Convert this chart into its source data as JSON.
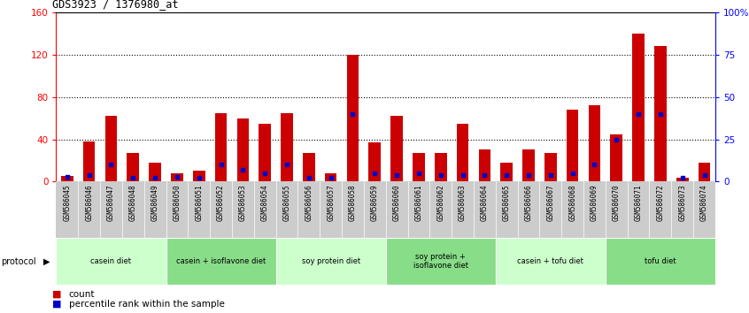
{
  "title": "GDS3923 / 1376980_at",
  "samples": [
    "GSM586045",
    "GSM586046",
    "GSM586047",
    "GSM586048",
    "GSM586049",
    "GSM586050",
    "GSM586051",
    "GSM586052",
    "GSM586053",
    "GSM586054",
    "GSM586055",
    "GSM586056",
    "GSM586057",
    "GSM586058",
    "GSM586059",
    "GSM586060",
    "GSM586061",
    "GSM586062",
    "GSM586063",
    "GSM586064",
    "GSM586065",
    "GSM586066",
    "GSM586067",
    "GSM586068",
    "GSM586069",
    "GSM586070",
    "GSM586071",
    "GSM586072",
    "GSM586073",
    "GSM586074"
  ],
  "counts": [
    5,
    38,
    62,
    27,
    18,
    8,
    10,
    65,
    60,
    55,
    65,
    27,
    8,
    120,
    37,
    62,
    27,
    27,
    55,
    30,
    18,
    30,
    27,
    68,
    72,
    45,
    140,
    128,
    4,
    18
  ],
  "percentile_ranks": [
    3,
    4,
    10,
    2,
    2,
    3,
    2,
    10,
    7,
    5,
    10,
    2,
    2,
    40,
    5,
    4,
    5,
    4,
    4,
    4,
    4,
    4,
    4,
    5,
    10,
    25,
    40,
    40,
    2,
    4
  ],
  "protocols": [
    {
      "label": "casein diet",
      "start": 0,
      "end": 5,
      "color": "#ccffcc"
    },
    {
      "label": "casein + isoflavone diet",
      "start": 5,
      "end": 10,
      "color": "#88dd88"
    },
    {
      "label": "soy protein diet",
      "start": 10,
      "end": 15,
      "color": "#ccffcc"
    },
    {
      "label": "soy protein +\nisoflavone diet",
      "start": 15,
      "end": 20,
      "color": "#88dd88"
    },
    {
      "label": "casein + tofu diet",
      "start": 20,
      "end": 25,
      "color": "#ccffcc"
    },
    {
      "label": "tofu diet",
      "start": 25,
      "end": 30,
      "color": "#88dd88"
    }
  ],
  "ylim_left": [
    0,
    160
  ],
  "ylim_right": [
    0,
    100
  ],
  "yticks_left": [
    0,
    40,
    80,
    120,
    160
  ],
  "yticks_right": [
    0,
    25,
    50,
    75,
    100
  ],
  "ytick_labels_right": [
    "0",
    "25",
    "50",
    "75",
    "100%"
  ],
  "bar_color": "#cc0000",
  "dot_color": "#0000cc",
  "label_bg": "#cccccc"
}
